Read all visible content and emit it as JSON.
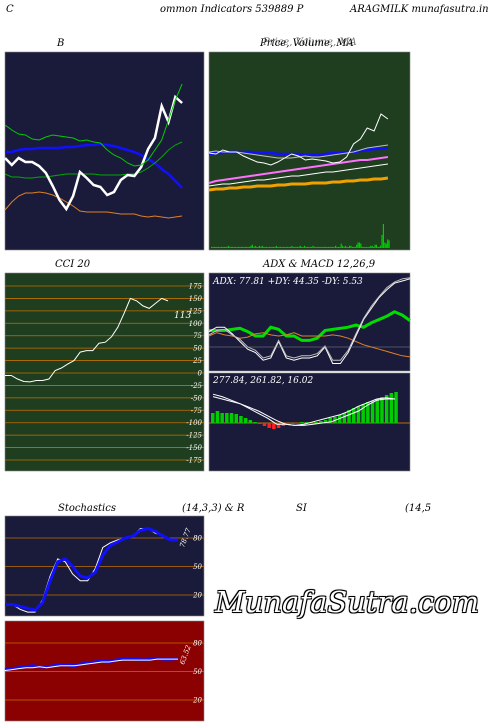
{
  "header": {
    "left": "C",
    "middle": "ommon  Indicators 539889 P",
    "right": "ARAGMILK munafasutra.in"
  },
  "watermark": "MunafaSutra.com",
  "colors": {
    "panel_navy": "#1a1a3a",
    "panel_green": "#1f3d1f",
    "panel_red": "#8b0000",
    "grid_orange": "#c07000",
    "blue": "#1010ff",
    "green": "#00cc00",
    "white": "#ffffff",
    "orange": "#e08020",
    "pink": "#ff60ff"
  },
  "chart_data": [
    {
      "id": "bollinger",
      "type": "line",
      "title": "B",
      "series": [
        {
          "values": [
            152,
            152,
            150,
            149,
            149,
            148,
            148,
            148,
            148,
            147,
            147,
            146,
            145,
            145,
            144,
            145,
            146,
            148,
            150,
            152,
            155,
            159,
            163,
            169,
            174,
            181,
            188
          ]
        },
        {
          "values": [
            174,
            177,
            177,
            178,
            178,
            177,
            177,
            176,
            175,
            174,
            174,
            174,
            174,
            174,
            175,
            175,
            175,
            175,
            174,
            174,
            172,
            168,
            163,
            157,
            150,
            145,
            142
          ]
        },
        {
          "values": [
            210,
            202,
            196,
            193,
            193,
            192,
            193,
            195,
            198,
            202,
            206,
            211,
            212,
            212,
            212,
            212,
            213,
            214,
            214,
            214,
            216,
            217,
            216,
            217,
            218,
            217,
            216
          ]
        },
        {
          "values": [
            158,
            165,
            158,
            162,
            162,
            166,
            173,
            186,
            200,
            209,
            196,
            172,
            178,
            185,
            187,
            195,
            192,
            180,
            175,
            176,
            167,
            149,
            138,
            106,
            122,
            97,
            103
          ]
        },
        {
          "values": [
            125,
            130,
            134,
            135,
            139,
            140,
            137,
            135,
            136,
            137,
            138,
            141,
            140,
            142,
            143,
            150,
            155,
            158,
            163,
            166,
            165,
            160,
            150,
            140,
            120,
            100,
            84
          ]
        }
      ],
      "series_colors": [
        "#1010ff",
        "#00aa00",
        "#e08020",
        "#ffffff",
        "#00cc00"
      ]
    },
    {
      "id": "price",
      "type": "line",
      "title": "Price,  Volume,  MA",
      "title_overlay": "Price,  Volume,  MA",
      "series": [
        {
          "values": [
            154,
            153,
            153,
            152,
            152,
            152,
            152,
            153,
            153,
            153,
            154,
            154,
            154,
            154,
            155,
            155,
            155,
            154,
            153,
            153,
            152,
            152,
            151,
            150,
            149,
            149,
            148
          ]
        },
        {
          "values": [
            152,
            151,
            152,
            152,
            152,
            153,
            154,
            155,
            156,
            157,
            158,
            158,
            158,
            157,
            156,
            157,
            157,
            156,
            155,
            154,
            153,
            152,
            150,
            148,
            147,
            146,
            145
          ]
        },
        {
          "values": [
            183,
            181,
            180,
            179,
            178,
            177,
            176,
            175,
            174,
            173,
            172,
            171,
            170,
            169,
            168,
            167,
            166,
            165,
            164,
            163,
            162,
            161,
            160,
            160,
            159,
            158,
            157
          ]
        },
        {
          "values": [
            186,
            185,
            184,
            184,
            183,
            182,
            181,
            180,
            180,
            179,
            178,
            177,
            176,
            176,
            175,
            174,
            173,
            172,
            172,
            171,
            170,
            169,
            168,
            167,
            166,
            165,
            164
          ]
        },
        {
          "values": [
            190,
            189,
            189,
            188,
            188,
            187,
            187,
            186,
            186,
            186,
            185,
            185,
            184,
            184,
            184,
            183,
            183,
            183,
            182,
            182,
            181,
            181,
            180,
            180,
            179,
            179,
            178
          ]
        },
        {
          "values": [
            153,
            154,
            150,
            152,
            152,
            156,
            159,
            162,
            163,
            165,
            162,
            158,
            154,
            156,
            160,
            159,
            160,
            161,
            163,
            162,
            157,
            144,
            139,
            128,
            131,
            114,
            119
          ]
        }
      ],
      "series_colors": [
        "#1010ff",
        "#c0c0c0",
        "#ff70ff",
        "#ffffff",
        "#f0a000",
        "#ffffff"
      ],
      "volume": [
        1,
        1,
        1,
        1,
        1,
        1,
        1,
        1,
        1,
        1,
        1,
        1,
        2,
        1,
        1,
        1,
        1,
        1,
        1,
        1,
        1,
        1,
        1,
        1,
        1,
        1,
        1,
        1,
        2,
        3,
        1,
        2,
        1,
        1,
        2,
        1,
        2,
        1,
        1,
        1,
        1,
        1,
        1,
        1,
        1,
        1,
        2,
        1,
        1,
        1,
        1,
        1,
        1,
        1,
        1,
        1,
        1,
        2,
        1,
        1,
        1,
        1,
        1,
        2,
        1,
        1,
        2,
        1,
        1,
        1,
        1,
        1,
        2,
        1,
        1,
        1,
        1,
        1,
        1,
        1,
        1,
        1,
        1,
        1,
        1,
        1,
        1,
        1,
        2,
        1,
        1,
        1,
        4,
        2,
        1,
        2,
        1,
        1,
        2,
        2,
        1,
        1,
        1,
        3,
        5,
        5,
        4,
        1,
        1,
        1,
        1,
        1,
        1,
        2,
        2,
        1,
        3,
        3,
        1,
        1,
        2,
        12,
        22,
        5,
        4,
        8,
        7
      ]
    },
    {
      "id": "cci",
      "type": "line",
      "title": "CCI 20",
      "data_label": "113",
      "yticks": [
        175,
        150,
        125,
        100,
        75,
        50,
        25,
        0,
        -25,
        -50,
        -75,
        -100,
        -125,
        -150,
        -175
      ],
      "ylim": [
        -175,
        175
      ],
      "series": [
        {
          "values": [
            -5,
            -5,
            -12,
            -17,
            -18,
            -15,
            -15,
            -12,
            5,
            10,
            18,
            25,
            42,
            45,
            45,
            60,
            62,
            73,
            92,
            120,
            150,
            145,
            135,
            130,
            140,
            150,
            145
          ]
        }
      ],
      "series_colors": [
        "#ffffff"
      ]
    },
    {
      "id": "adx",
      "type": "line",
      "title": "ADX  & MACD 12,26,9",
      "annotation": "ADX: 77.81  +DY: 44.35  -DY: 5.53",
      "series": [
        {
          "values": [
            35,
            35,
            35,
            36,
            37,
            34,
            30,
            30,
            38,
            36,
            30,
            30,
            26,
            26,
            28,
            35,
            36,
            37,
            38,
            40,
            38,
            42,
            45,
            48,
            52,
            49,
            44
          ]
        },
        {
          "values": [
            30,
            33,
            31,
            30,
            28,
            29,
            32,
            33,
            31,
            30,
            31,
            33,
            30,
            30,
            30,
            30,
            31,
            30,
            28,
            25,
            22,
            20,
            18,
            16,
            14,
            12,
            11
          ]
        },
        {
          "values": [
            34,
            38,
            38,
            32,
            25,
            18,
            15,
            8,
            10,
            25,
            10,
            8,
            10,
            10,
            12,
            20,
            5,
            5,
            15,
            30,
            45,
            55,
            65,
            72,
            78,
            80,
            82
          ]
        },
        {
          "values": [
            31,
            35,
            36,
            31,
            27,
            20,
            17,
            10,
            12,
            26,
            12,
            10,
            12,
            12,
            14,
            21,
            8,
            8,
            17,
            32,
            46,
            57,
            66,
            74,
            79,
            82,
            83
          ]
        }
      ],
      "series_colors": [
        "#00dd00",
        "#e08020",
        "#ffffff",
        "#c0c0c0"
      ]
    },
    {
      "id": "macd",
      "type": "line",
      "annotation": "277.84,  261.82,  16.02",
      "histogram": [
        10,
        12,
        10,
        10,
        10,
        9,
        7,
        5,
        3,
        1,
        -1,
        -3,
        -5,
        -6,
        -5,
        -3,
        -2,
        -1,
        0,
        1,
        1,
        0,
        1,
        2,
        3,
        5,
        6,
        8,
        10,
        13,
        15,
        17,
        19,
        21,
        22,
        24,
        26,
        28,
        30,
        31
      ],
      "series": [
        {
          "values": [
            22,
            20,
            18,
            16,
            12,
            8,
            4,
            -1,
            -1,
            -2,
            -2,
            -1,
            0,
            1,
            4,
            7,
            10,
            15,
            19,
            20,
            20
          ]
        },
        {
          "values": [
            24,
            22,
            19,
            16,
            13,
            10,
            6,
            2,
            -1,
            -2,
            -1,
            1,
            3,
            5,
            7,
            10,
            14,
            17,
            20,
            21,
            20
          ]
        }
      ],
      "series_colors": [
        "#ffffff",
        "#ffffff"
      ]
    },
    {
      "id": "stochastics",
      "type": "line",
      "title": "Stochastics",
      "params": "(14,3,3) & R",
      "data_label": "78.77",
      "yticks": [
        80,
        50,
        20
      ],
      "ylim": [
        0,
        100
      ],
      "series": [
        {
          "values": [
            10,
            10,
            5,
            2,
            2,
            15,
            40,
            58,
            55,
            42,
            35,
            35,
            48,
            70,
            75,
            78,
            80,
            82,
            90,
            90,
            85,
            83,
            78,
            78
          ]
        },
        {
          "values": [
            10,
            10,
            8,
            6,
            4,
            12,
            35,
            55,
            58,
            50,
            40,
            38,
            44,
            62,
            72,
            76,
            80,
            82,
            88,
            90,
            87,
            82,
            78,
            78
          ]
        }
      ],
      "series_colors": [
        "#ffffff",
        "#1010ff"
      ]
    },
    {
      "id": "rsi",
      "type": "line",
      "title": "SI",
      "params": "(14,5",
      "data_label": "63.52",
      "yticks": [
        80,
        50,
        20
      ],
      "ylim": [
        0,
        100
      ],
      "series": [
        {
          "values": [
            52,
            53,
            54,
            55,
            56,
            55,
            55,
            56,
            57,
            57,
            56,
            58,
            59,
            60,
            61,
            60,
            62,
            63,
            63,
            63,
            62,
            63,
            64,
            63,
            63,
            64
          ]
        },
        {
          "values": [
            51,
            52,
            53,
            54,
            54,
            55,
            54,
            55,
            56,
            56,
            56,
            57,
            58,
            59,
            60,
            60,
            61,
            62,
            62,
            62,
            62,
            62,
            63,
            63,
            63,
            63
          ]
        }
      ],
      "series_colors": [
        "#1010ff",
        "#ffffff"
      ]
    }
  ]
}
